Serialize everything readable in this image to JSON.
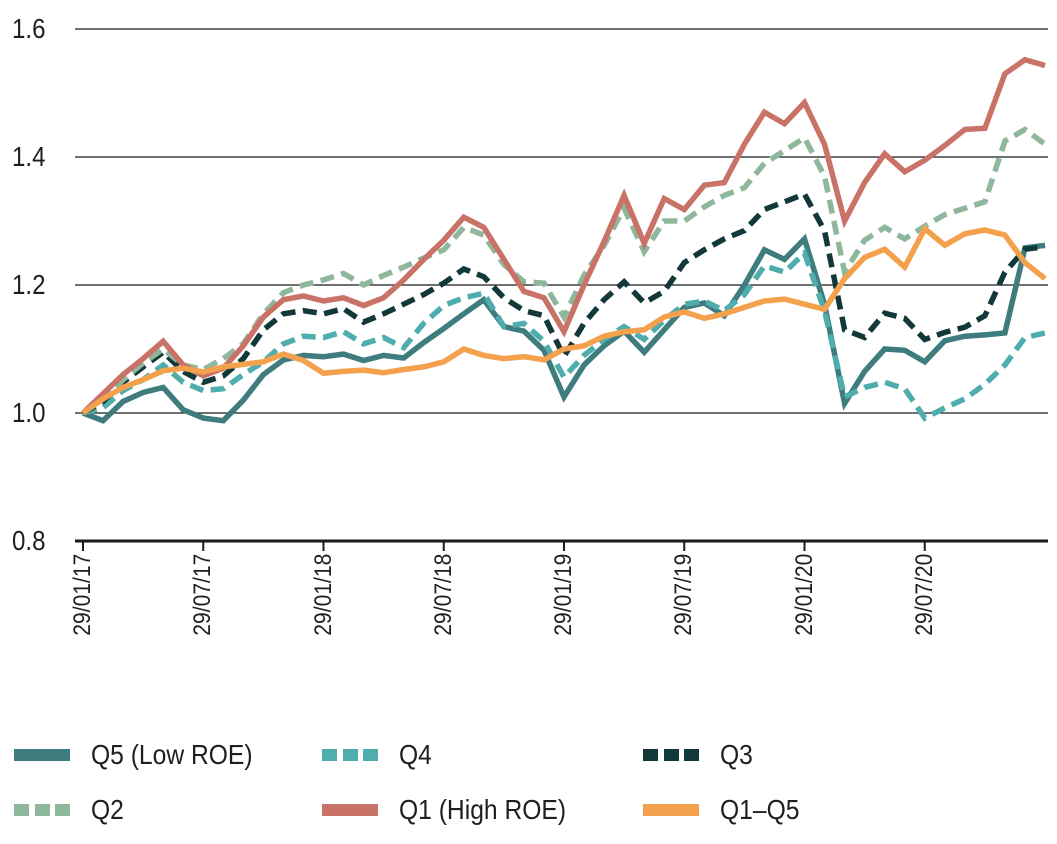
{
  "chart_data": {
    "type": "line",
    "title": "",
    "description": "Indexed performance of ROE quintiles, weekly/monthly cadence, 29/01/17 base = 1.0",
    "x_axis": {
      "start_label": "29/01/17",
      "interval": "monthly",
      "n_points": 49,
      "tick_labels": [
        "29/01/17",
        "29/07/17",
        "29/01/18",
        "29/07/18",
        "29/01/19",
        "29/07/19",
        "29/01/20",
        "29/07/20"
      ],
      "tick_month_indices": [
        0,
        6,
        12,
        18,
        24,
        30,
        36,
        42
      ]
    },
    "y_axis": {
      "tick_labels": [
        "1.6",
        "1.4",
        "1.2",
        "1.0",
        "0.8"
      ],
      "tick_values": [
        1.6,
        1.4,
        1.2,
        1.0,
        0.8
      ],
      "ylim": [
        0.8,
        1.65
      ],
      "gridline_values": [
        1.0,
        1.2,
        1.4,
        1.6
      ],
      "baseline_value": 0.8,
      "grid": true
    },
    "series": [
      {
        "name": "Q5 (Low ROE)",
        "color": "#3e7c7d",
        "style": "solid",
        "values": [
          1.0,
          0.988,
          1.018,
          1.032,
          1.04,
          1.005,
          0.992,
          0.988,
          1.02,
          1.06,
          1.083,
          1.09,
          1.088,
          1.092,
          1.082,
          1.09,
          1.086,
          1.11,
          1.132,
          1.155,
          1.177,
          1.135,
          1.128,
          1.098,
          1.025,
          1.075,
          1.105,
          1.128,
          1.095,
          1.13,
          1.165,
          1.172,
          1.152,
          1.2,
          1.255,
          1.24,
          1.272,
          1.17,
          1.015,
          1.065,
          1.1,
          1.098,
          1.08,
          1.113,
          1.12,
          1.122,
          1.125,
          1.258,
          1.262
        ]
      },
      {
        "name": "Q4",
        "color": "#4fadae",
        "style": "dashed",
        "values": [
          1.0,
          1.008,
          1.035,
          1.052,
          1.075,
          1.048,
          1.035,
          1.038,
          1.06,
          1.08,
          1.108,
          1.12,
          1.118,
          1.127,
          1.108,
          1.118,
          1.102,
          1.14,
          1.168,
          1.18,
          1.187,
          1.135,
          1.14,
          1.112,
          1.056,
          1.09,
          1.115,
          1.135,
          1.115,
          1.145,
          1.17,
          1.175,
          1.16,
          1.185,
          1.23,
          1.22,
          1.25,
          1.16,
          1.025,
          1.04,
          1.048,
          1.038,
          0.992,
          1.008,
          1.022,
          1.045,
          1.075,
          1.118,
          1.125
        ]
      },
      {
        "name": "Q3",
        "color": "#133839",
        "style": "dashed",
        "values": [
          1.0,
          1.018,
          1.048,
          1.072,
          1.095,
          1.065,
          1.048,
          1.058,
          1.085,
          1.13,
          1.155,
          1.16,
          1.155,
          1.163,
          1.142,
          1.155,
          1.17,
          1.185,
          1.203,
          1.225,
          1.213,
          1.18,
          1.16,
          1.152,
          1.088,
          1.14,
          1.177,
          1.205,
          1.172,
          1.19,
          1.235,
          1.255,
          1.272,
          1.285,
          1.318,
          1.33,
          1.342,
          1.285,
          1.13,
          1.118,
          1.156,
          1.148,
          1.115,
          1.126,
          1.134,
          1.152,
          1.22,
          1.256,
          1.26
        ]
      },
      {
        "name": "Q2",
        "color": "#8eb79b",
        "style": "dashed",
        "values": [
          1.0,
          1.022,
          1.052,
          1.078,
          1.1,
          1.075,
          1.068,
          1.085,
          1.108,
          1.155,
          1.188,
          1.2,
          1.208,
          1.218,
          1.2,
          1.215,
          1.228,
          1.242,
          1.255,
          1.29,
          1.278,
          1.232,
          1.205,
          1.203,
          1.15,
          1.215,
          1.262,
          1.32,
          1.252,
          1.3,
          1.3,
          1.322,
          1.34,
          1.352,
          1.39,
          1.41,
          1.43,
          1.37,
          1.22,
          1.27,
          1.29,
          1.272,
          1.292,
          1.31,
          1.32,
          1.33,
          1.425,
          1.443,
          1.42
        ]
      },
      {
        "name": "Q1 (High ROE)",
        "color": "#c97268",
        "style": "solid",
        "values": [
          1.0,
          1.03,
          1.06,
          1.085,
          1.112,
          1.075,
          1.058,
          1.07,
          1.105,
          1.15,
          1.177,
          1.183,
          1.175,
          1.18,
          1.168,
          1.18,
          1.208,
          1.24,
          1.27,
          1.306,
          1.29,
          1.24,
          1.19,
          1.18,
          1.127,
          1.2,
          1.268,
          1.34,
          1.265,
          1.335,
          1.318,
          1.356,
          1.36,
          1.42,
          1.47,
          1.452,
          1.485,
          1.42,
          1.3,
          1.36,
          1.405,
          1.377,
          1.395,
          1.418,
          1.443,
          1.445,
          1.53,
          1.552,
          1.543
        ]
      },
      {
        "name": "Q1–Q5",
        "color": "#f4a14d",
        "style": "solid",
        "values": [
          1.0,
          1.022,
          1.04,
          1.052,
          1.066,
          1.07,
          1.064,
          1.072,
          1.076,
          1.08,
          1.092,
          1.082,
          1.062,
          1.065,
          1.067,
          1.063,
          1.068,
          1.072,
          1.08,
          1.1,
          1.09,
          1.085,
          1.088,
          1.083,
          1.1,
          1.105,
          1.12,
          1.127,
          1.13,
          1.15,
          1.158,
          1.148,
          1.155,
          1.165,
          1.175,
          1.178,
          1.17,
          1.162,
          1.21,
          1.243,
          1.256,
          1.228,
          1.288,
          1.262,
          1.28,
          1.286,
          1.278,
          1.235,
          1.21
        ]
      }
    ],
    "legend": {
      "position": "bottom",
      "rows": [
        [
          "Q5 (Low ROE)",
          "Q4",
          "Q3"
        ],
        [
          "Q2",
          "Q1 (High ROE)",
          "Q1–Q5"
        ]
      ]
    }
  },
  "layout_text": {
    "axis_color": "#1a1a1a"
  }
}
